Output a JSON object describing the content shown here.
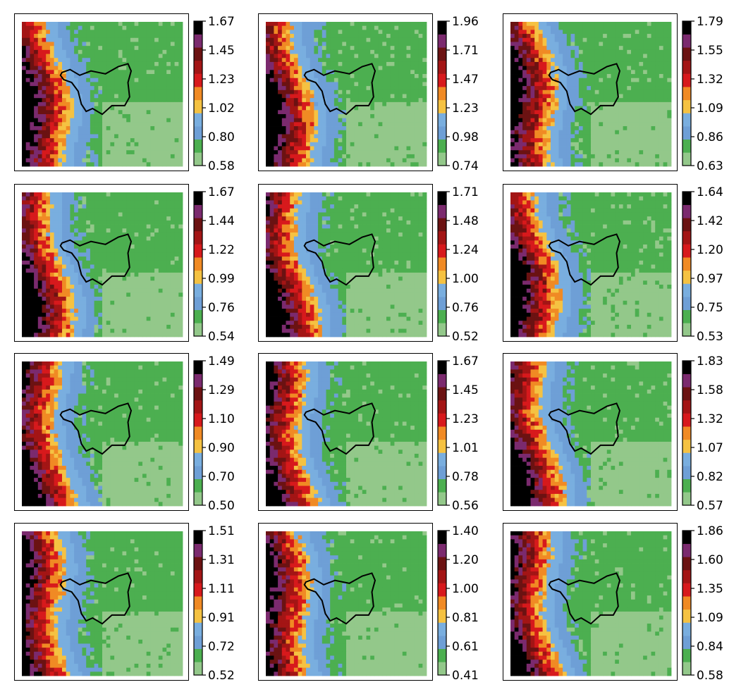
{
  "chart_data": {
    "type": "heatmap",
    "layout": {
      "rows": 4,
      "cols": 3
    },
    "colormap": [
      "#93c88a",
      "#4caf50",
      "#4aa74a",
      "#6e9fd6",
      "#79aedf",
      "#f5c242",
      "#f08a24",
      "#d7191c",
      "#a31515",
      "#6b1212",
      "#7b2a6e",
      "#000000"
    ],
    "colormap_legend": [
      "#93c88a",
      "#4caf50",
      "#6e9fd6",
      "#79aedf",
      "#f5c242",
      "#f08a24",
      "#d7191c",
      "#a31515",
      "#6b1212",
      "#7b2a6e",
      "#000000"
    ],
    "panels": [
      {
        "ticks": [
          "0.58",
          "0.80",
          "1.02",
          "1.23",
          "1.45",
          "1.67"
        ],
        "seed": 11
      },
      {
        "ticks": [
          "0.74",
          "0.98",
          "1.23",
          "1.47",
          "1.71",
          "1.96"
        ],
        "seed": 23
      },
      {
        "ticks": [
          "0.63",
          "0.86",
          "1.09",
          "1.32",
          "1.55",
          "1.79"
        ],
        "seed": 37
      },
      {
        "ticks": [
          "0.54",
          "0.76",
          "0.99",
          "1.22",
          "1.44",
          "1.67"
        ],
        "seed": 41
      },
      {
        "ticks": [
          "0.52",
          "0.76",
          "1.00",
          "1.24",
          "1.48",
          "1.71"
        ],
        "seed": 53
      },
      {
        "ticks": [
          "0.53",
          "0.75",
          "0.97",
          "1.20",
          "1.42",
          "1.64"
        ],
        "seed": 67
      },
      {
        "ticks": [
          "0.50",
          "0.70",
          "0.90",
          "1.10",
          "1.29",
          "1.49"
        ],
        "seed": 71
      },
      {
        "ticks": [
          "0.56",
          "0.78",
          "1.01",
          "1.23",
          "1.45",
          "1.67"
        ],
        "seed": 83
      },
      {
        "ticks": [
          "0.57",
          "0.82",
          "1.07",
          "1.32",
          "1.58",
          "1.83"
        ],
        "seed": 97
      },
      {
        "ticks": [
          "0.52",
          "0.72",
          "0.91",
          "1.11",
          "1.31",
          "1.51"
        ],
        "seed": 101
      },
      {
        "ticks": [
          "0.41",
          "0.61",
          "0.81",
          "1.00",
          "1.20",
          "1.40"
        ],
        "seed": 113
      },
      {
        "ticks": [
          "0.58",
          "0.84",
          "1.09",
          "1.35",
          "1.60",
          "1.86"
        ],
        "seed": 127
      }
    ]
  }
}
